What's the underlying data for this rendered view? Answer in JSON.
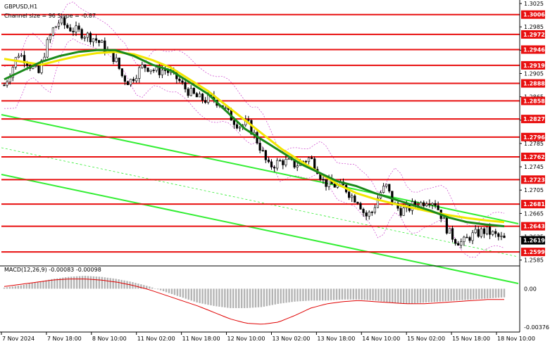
{
  "header": {
    "symbol_timeframe": "GBPUSD,H1",
    "indicator_caption": "Channel size = 96  Slope = -0.87"
  },
  "macd": {
    "caption": "MACD(12,26,9) -0.00083 -0.00098",
    "scale_labels": [
      "0.00",
      "-0.00376"
    ],
    "range": [
      -0.00376,
      0.0012
    ]
  },
  "colors": {
    "resistance": "#e81010",
    "channel": "#33ee33",
    "ma_fast": "#1a8a1a",
    "ma_slow": "#f2e600",
    "bbands": "#cc44cc",
    "candle": "#000000",
    "macd_hist": "#b4b4b4",
    "macd_signal": "#e00000",
    "current_price_bg": "#000000"
  },
  "chart_data": {
    "type": "candlestick",
    "title": "GBPUSD,H1",
    "ylim": [
      1.2575,
      1.3025
    ],
    "y_ticks": [
      "1.3025",
      "1.2985",
      "1.2945",
      "1.2905",
      "1.2865",
      "1.2825",
      "1.2785",
      "1.2745",
      "1.2705",
      "1.2665",
      "1.2625",
      "1.2585"
    ],
    "x_ticks": [
      "7 Nov 2024",
      "7 Nov 18:00",
      "8 Nov 10:00",
      "11 Nov 02:00",
      "11 Nov 18:00",
      "12 Nov 10:00",
      "13 Nov 02:00",
      "13 Nov 18:00",
      "14 Nov 10:00",
      "15 Nov 02:00",
      "15 Nov 18:00",
      "18 Nov 10:00"
    ],
    "resistance_levels": [
      1.3006,
      1.2972,
      1.2946,
      1.2919,
      1.2888,
      1.2858,
      1.2827,
      1.2796,
      1.2762,
      1.2723,
      1.2681,
      1.2643,
      1.2599
    ],
    "resistance_labels": [
      "1.3006",
      "1.2972",
      "1.2946",
      "1.2919",
      "1.2888",
      "1.2858",
      "1.2827",
      "1.2796",
      "1.2762",
      "1.2723",
      "1.2681",
      "1.2643",
      "1.2599"
    ],
    "current_price": 1.2619,
    "current_price_label": "1.2619",
    "close_path": [
      1.2885,
      1.291,
      1.294,
      1.293,
      1.2915,
      1.2905,
      1.295,
      1.298,
      1.2995,
      1.2985,
      1.298,
      1.2975,
      1.297,
      1.2965,
      1.2955,
      1.294,
      1.293,
      1.29,
      1.289,
      1.2905,
      1.2918,
      1.2915,
      1.2908,
      1.2912,
      1.2905,
      1.2895,
      1.288,
      1.287,
      1.2862,
      1.286,
      1.2862,
      1.2855,
      1.284,
      1.2825,
      1.2815,
      1.282,
      1.28,
      1.2775,
      1.2745,
      1.275,
      1.2755,
      1.2752,
      1.2748,
      1.2755,
      1.276,
      1.2745,
      1.2718,
      1.2715,
      1.2712,
      1.271,
      1.2695,
      1.2688,
      1.266,
      1.2668,
      1.2698,
      1.2712,
      1.2682,
      1.267,
      1.2672,
      1.268,
      1.2682,
      1.269,
      1.2685,
      1.266,
      1.2632,
      1.262,
      1.2614,
      1.2625,
      1.263,
      1.2635,
      1.2632,
      1.2625,
      1.262
    ],
    "ma_fast": [
      1.2895,
      1.291,
      1.2925,
      1.2935,
      1.2942,
      1.2945,
      1.2945,
      1.2935,
      1.292,
      1.291,
      1.289,
      1.287,
      1.284,
      1.281,
      1.279,
      1.277,
      1.275,
      1.2735,
      1.272,
      1.2712,
      1.27,
      1.269,
      1.268,
      1.267,
      1.2658,
      1.265,
      1.2646,
      1.2643
    ],
    "ma_slow": [
      1.293,
      1.2925,
      1.292,
      1.2928,
      1.2935,
      1.294,
      1.2942,
      1.2938,
      1.2928,
      1.2915,
      1.2895,
      1.2875,
      1.285,
      1.2825,
      1.28,
      1.2775,
      1.2755,
      1.2735,
      1.2715,
      1.27,
      1.269,
      1.2682,
      1.2675,
      1.2668,
      1.2662,
      1.2657,
      1.2653,
      1.265
    ],
    "macd_hist": [
      0.0001,
      0.0003,
      0.0006,
      0.0009,
      0.0011,
      0.0012,
      0.0011,
      0.0009,
      0.0006,
      0.0002,
      -0.0003,
      -0.0008,
      -0.0013,
      -0.0016,
      -0.0018,
      -0.0018,
      -0.0017,
      -0.0014,
      -0.0012,
      -0.0011,
      -0.0011,
      -0.001,
      -0.001,
      -0.0011,
      -0.0013,
      -0.0014,
      -0.0013,
      -0.0012,
      -0.0011,
      -0.001,
      -0.0009,
      -0.0008
    ],
    "macd_signal": [
      0.0002,
      0.0004,
      0.0006,
      0.0008,
      0.0009,
      0.0009,
      0.0008,
      0.0006,
      0.0003,
      -0.0001,
      -0.0006,
      -0.0011,
      -0.0016,
      -0.0022,
      -0.0028,
      -0.0032,
      -0.0033,
      -0.0031,
      -0.0025,
      -0.0018,
      -0.0014,
      -0.0012,
      -0.0011,
      -0.0012,
      -0.0013,
      -0.0014,
      -0.0014,
      -0.0013,
      -0.0012,
      -0.0011,
      -0.001,
      -0.001
    ]
  }
}
